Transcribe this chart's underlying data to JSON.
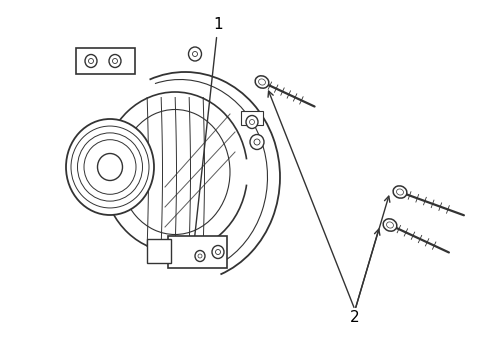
{
  "background_color": "#ffffff",
  "line_color": "#333333",
  "label_color": "#000000",
  "fig_width": 4.89,
  "fig_height": 3.6,
  "dpi": 100,
  "label1": "1",
  "label2": "2"
}
